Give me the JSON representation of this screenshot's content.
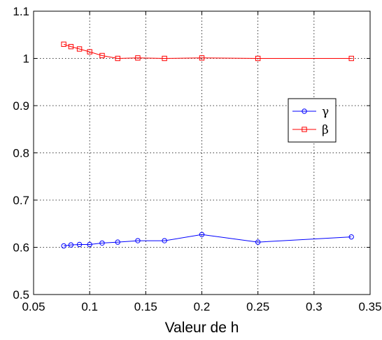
{
  "chart_data": {
    "type": "line",
    "title": "",
    "xlabel": "Valeur de h",
    "ylabel": "",
    "xlim": [
      0.05,
      0.35
    ],
    "ylim": [
      0.5,
      1.1
    ],
    "xticks": [
      0.05,
      0.1,
      0.15,
      0.2,
      0.25,
      0.3,
      0.35
    ],
    "yticks": [
      0.5,
      0.6,
      0.7,
      0.8,
      0.9,
      1,
      1.1
    ],
    "xtick_labels": [
      "0.05",
      "0.1",
      "0.15",
      "0.2",
      "0.25",
      "0.3",
      "0.35"
    ],
    "ytick_labels": [
      "0.5",
      "0.6",
      "0.7",
      "0.8",
      "0.9",
      "1",
      "1.1"
    ],
    "grid": true,
    "legend_position": "right",
    "series": [
      {
        "name": "γ",
        "color": "#0000ff",
        "marker": "circle",
        "x": [
          0.0769,
          0.0833,
          0.0909,
          0.1,
          0.1111,
          0.125,
          0.1429,
          0.1667,
          0.2,
          0.25,
          0.3333
        ],
        "y": [
          0.603,
          0.605,
          0.606,
          0.606,
          0.609,
          0.611,
          0.614,
          0.614,
          0.627,
          0.611,
          0.622
        ]
      },
      {
        "name": "β",
        "color": "#ff0000",
        "marker": "square",
        "x": [
          0.0769,
          0.0833,
          0.0909,
          0.1,
          0.1111,
          0.125,
          0.1429,
          0.1667,
          0.2,
          0.25,
          0.3333
        ],
        "y": [
          1.03,
          1.025,
          1.02,
          1.014,
          1.006,
          1.0,
          1.001,
          1.0,
          1.001,
          1.0,
          1.0
        ]
      }
    ]
  }
}
